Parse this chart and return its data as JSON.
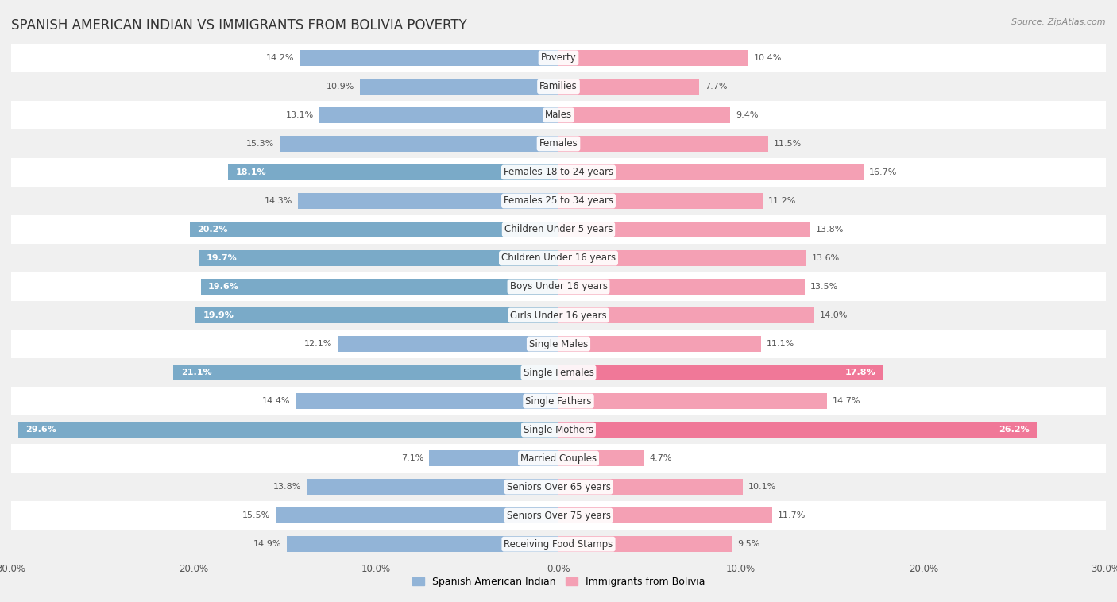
{
  "title": "SPANISH AMERICAN INDIAN VS IMMIGRANTS FROM BOLIVIA POVERTY",
  "source": "Source: ZipAtlas.com",
  "categories": [
    "Poverty",
    "Families",
    "Males",
    "Females",
    "Females 18 to 24 years",
    "Females 25 to 34 years",
    "Children Under 5 years",
    "Children Under 16 years",
    "Boys Under 16 years",
    "Girls Under 16 years",
    "Single Males",
    "Single Females",
    "Single Fathers",
    "Single Mothers",
    "Married Couples",
    "Seniors Over 65 years",
    "Seniors Over 75 years",
    "Receiving Food Stamps"
  ],
  "left_values": [
    14.2,
    10.9,
    13.1,
    15.3,
    18.1,
    14.3,
    20.2,
    19.7,
    19.6,
    19.9,
    12.1,
    21.1,
    14.4,
    29.6,
    7.1,
    13.8,
    15.5,
    14.9
  ],
  "right_values": [
    10.4,
    7.7,
    9.4,
    11.5,
    16.7,
    11.2,
    13.8,
    13.6,
    13.5,
    14.0,
    11.1,
    17.8,
    14.7,
    26.2,
    4.7,
    10.1,
    11.7,
    9.5
  ],
  "left_color_normal": "#92b4d7",
  "left_color_highlight": "#7aaac8",
  "right_color_normal": "#f4a0b4",
  "right_color_highlight": "#f07898",
  "highlight_threshold": 17.0,
  "left_label": "Spanish American Indian",
  "right_label": "Immigrants from Bolivia",
  "xlim": 30.0,
  "row_bg_odd": "#f0f0f0",
  "row_bg_even": "#fafafa",
  "title_fontsize": 12,
  "cat_fontsize": 8.5,
  "value_fontsize": 8,
  "source_fontsize": 8,
  "legend_fontsize": 9
}
